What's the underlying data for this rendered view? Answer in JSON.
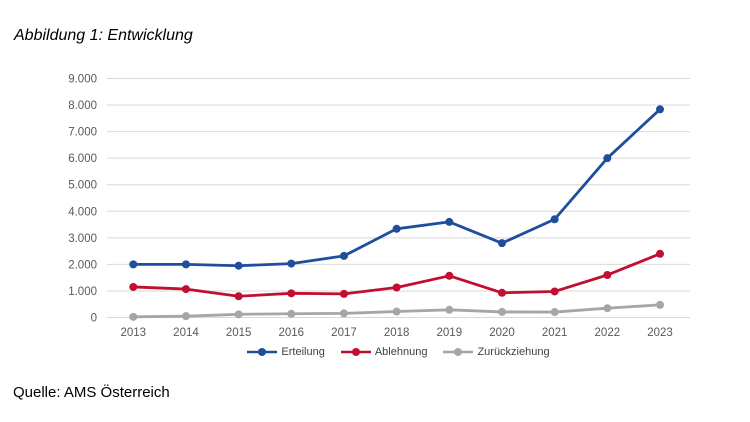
{
  "page": {
    "title": "Abbildung 1: Entwicklung",
    "source": "Quelle: AMS Österreich"
  },
  "chart_data": {
    "type": "line",
    "title": "Abbildung 1: Entwicklung",
    "xlabel": "",
    "ylabel": "",
    "categories": [
      "2013",
      "2014",
      "2015",
      "2016",
      "2017",
      "2018",
      "2019",
      "2020",
      "2021",
      "2022",
      "2023"
    ],
    "series": [
      {
        "name": "Erteilung",
        "color": "#1F4E9C",
        "values": [
          2000,
          2000,
          1950,
          2030,
          2320,
          3340,
          3600,
          2800,
          3700,
          6000,
          7840
        ]
      },
      {
        "name": "Ablehnung",
        "color": "#C00F31",
        "values": [
          1150,
          1070,
          800,
          910,
          890,
          1130,
          1570,
          930,
          980,
          1600,
          2400
        ]
      },
      {
        "name": "Zurückziehung",
        "color": "#A6A6A6",
        "values": [
          25,
          50,
          120,
          140,
          155,
          225,
          290,
          210,
          205,
          350,
          475
        ]
      }
    ],
    "ylim": [
      0,
      9000
    ],
    "y_tick_step": 1000,
    "y_tick_labels": [
      "0",
      "1.000",
      "2.000",
      "3.000",
      "4.000",
      "5.000",
      "6.000",
      "7.000",
      "8.000",
      "9.000"
    ],
    "grid": "horizontal-only",
    "legend_position": "bottom",
    "colors": {
      "gridline": "#D9D9D9",
      "tick_label": "#595959",
      "legend_text": "#404040",
      "background": "#FFFFFF"
    }
  }
}
